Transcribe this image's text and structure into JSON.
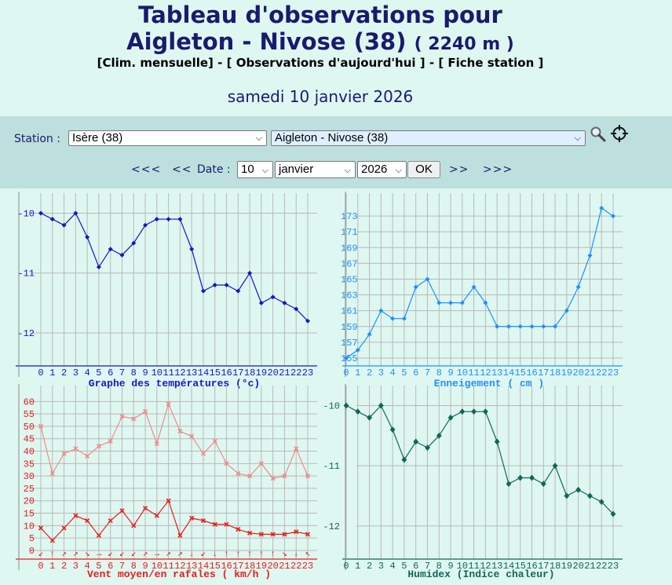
{
  "header": {
    "title_line1": "Tableau d'observations pour",
    "title_line2": "Aigleton - Nivose (38)",
    "altitude": "( 2240 m )",
    "link_clim": "[Clim. mensuelle]",
    "sep1": "-",
    "link_today": "[ Observations d'aujourd'hui ]",
    "sep2": "-",
    "link_station": "[ Fiche station ]",
    "date": "samedi 10 janvier 2026"
  },
  "controls": {
    "station_label": "Station :",
    "department": "Isère (38)",
    "station": "Aigleton - Nivose (38)",
    "nav_prev_far": "<<<",
    "nav_prev": "<<",
    "date_label": "Date :",
    "day": "10",
    "month": "janvier",
    "year": "2026",
    "ok": "OK",
    "nav_next": ">>",
    "nav_next_far": ">>>",
    "search_icon": "magnifier-icon",
    "locate_icon": "crosshair-icon"
  },
  "chart_data": [
    {
      "type": "line",
      "title": "Graphe des températures (°c)",
      "color": "#1515c8",
      "x": [
        "0",
        "1",
        "2",
        "3",
        "4",
        "5",
        "6",
        "7",
        "8",
        "9",
        "10",
        "11",
        "12",
        "13",
        "14",
        "15",
        "16",
        "17",
        "18",
        "19",
        "20",
        "21",
        "22",
        "23"
      ],
      "ylim": [
        -12.55,
        -9.85
      ],
      "yticks": [
        -10,
        -11,
        -12
      ],
      "series": [
        {
          "values": [
            -10.0,
            -10.1,
            -10.2,
            -10.0,
            -10.4,
            -10.9,
            -10.6,
            -10.7,
            -10.5,
            -10.2,
            -10.1,
            -10.1,
            -10.1,
            -10.6,
            -11.3,
            -11.2,
            -11.2,
            -11.3,
            -11.0,
            -11.5,
            -11.4,
            -11.5,
            -11.6,
            -11.8
          ]
        }
      ]
    },
    {
      "type": "line",
      "title": "Enneigement ( cm )",
      "color": "#1e90ff",
      "x": [
        "0",
        "1",
        "2",
        "3",
        "4",
        "5",
        "6",
        "7",
        "8",
        "9",
        "10",
        "11",
        "12",
        "13",
        "14",
        "15",
        "16",
        "17",
        "18",
        "19",
        "20",
        "21",
        "22",
        "23"
      ],
      "ylim": [
        154,
        174.5
      ],
      "yticks": [
        155,
        157,
        159,
        161,
        163,
        165,
        167,
        169,
        171,
        173
      ],
      "series": [
        {
          "values": [
            155,
            156,
            158,
            161,
            160,
            160,
            164,
            165,
            162,
            162,
            162,
            164,
            162,
            159,
            159,
            159,
            159,
            159,
            159,
            161,
            164,
            168,
            174,
            173
          ]
        }
      ]
    },
    {
      "type": "line",
      "title": "Vent moyen/en rafales ( km/h )",
      "color": "#e81c1c",
      "x": [
        "0",
        "1",
        "2",
        "3",
        "4",
        "5",
        "6",
        "7",
        "8",
        "9",
        "10",
        "11",
        "12",
        "13",
        "14",
        "15",
        "16",
        "17",
        "18",
        "19",
        "20",
        "21",
        "22",
        "23"
      ],
      "ylim": [
        -3.5,
        62
      ],
      "yticks": [
        0,
        5,
        10,
        15,
        20,
        25,
        30,
        35,
        40,
        45,
        50,
        55,
        60
      ],
      "series": [
        {
          "values": [
            50,
            31,
            39,
            41,
            38,
            42,
            44,
            54,
            53,
            56,
            43,
            59,
            48,
            46,
            39,
            44,
            35,
            31,
            30,
            35,
            29,
            30,
            41,
            30
          ],
          "color": "#f08a8a"
        },
        {
          "values": [
            9,
            4,
            9,
            14,
            12,
            6,
            12,
            16,
            10,
            17,
            14,
            20,
            6,
            13,
            12,
            10.5,
            10.5,
            8.5,
            7,
            6.5,
            6.5,
            6.5,
            7.5,
            6.5
          ],
          "color": "#e81c1c"
        }
      ],
      "wind_directions": [
        "↙",
        "↑",
        "↗",
        "↗",
        "↘",
        "→",
        "↙",
        "↙",
        "↙",
        "↗",
        "→",
        "↗",
        "↗",
        "↓",
        "↙",
        "↓",
        "↑",
        "↑",
        "↑",
        "↑",
        "↑",
        "↘",
        "↓",
        "↖"
      ]
    },
    {
      "type": "line",
      "title": "Humidex (Indice chaleur)",
      "color": "#11665a",
      "x": [
        "0",
        "1",
        "2",
        "3",
        "4",
        "5",
        "6",
        "7",
        "8",
        "9",
        "10",
        "11",
        "12",
        "13",
        "14",
        "15",
        "16",
        "17",
        "18",
        "19",
        "20",
        "21",
        "22",
        "23"
      ],
      "ylim": [
        -12.55,
        -9.85
      ],
      "yticks": [
        -10,
        -11,
        -12
      ],
      "series": [
        {
          "values": [
            -10.0,
            -10.1,
            -10.2,
            -10.0,
            -10.4,
            -10.9,
            -10.6,
            -10.7,
            -10.5,
            -10.2,
            -10.1,
            -10.1,
            -10.1,
            -10.6,
            -11.3,
            -11.2,
            -11.2,
            -11.3,
            -11.0,
            -11.5,
            -11.4,
            -11.5,
            -11.6,
            -11.8
          ]
        }
      ]
    }
  ]
}
